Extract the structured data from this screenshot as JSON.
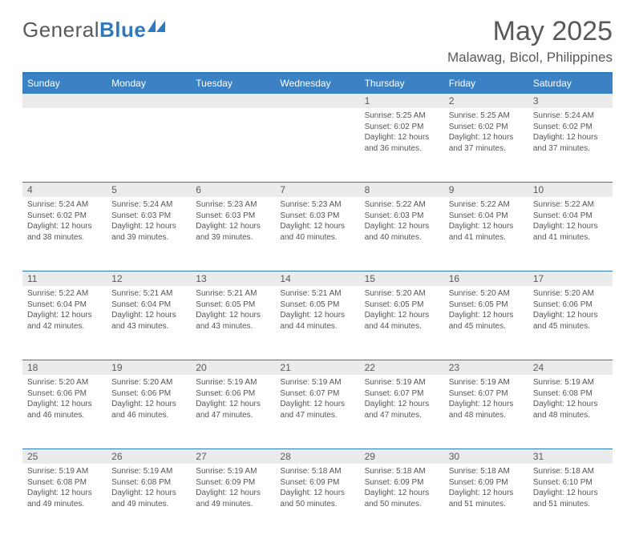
{
  "logo": {
    "text1": "General",
    "text2": "Blue"
  },
  "title": "May 2025",
  "location": "Malawag, Bicol, Philippines",
  "colors": {
    "header_bg": "#3b82c4",
    "header_border": "#2f7abf",
    "daynum_bg": "#ebebeb",
    "text": "#595959"
  },
  "days_of_week": [
    "Sunday",
    "Monday",
    "Tuesday",
    "Wednesday",
    "Thursday",
    "Friday",
    "Saturday"
  ],
  "weeks": [
    [
      null,
      null,
      null,
      null,
      {
        "n": "1",
        "sr": "5:25 AM",
        "ss": "6:02 PM",
        "dl": "12 hours and 36 minutes."
      },
      {
        "n": "2",
        "sr": "5:25 AM",
        "ss": "6:02 PM",
        "dl": "12 hours and 37 minutes."
      },
      {
        "n": "3",
        "sr": "5:24 AM",
        "ss": "6:02 PM",
        "dl": "12 hours and 37 minutes."
      }
    ],
    [
      {
        "n": "4",
        "sr": "5:24 AM",
        "ss": "6:02 PM",
        "dl": "12 hours and 38 minutes."
      },
      {
        "n": "5",
        "sr": "5:24 AM",
        "ss": "6:03 PM",
        "dl": "12 hours and 39 minutes."
      },
      {
        "n": "6",
        "sr": "5:23 AM",
        "ss": "6:03 PM",
        "dl": "12 hours and 39 minutes."
      },
      {
        "n": "7",
        "sr": "5:23 AM",
        "ss": "6:03 PM",
        "dl": "12 hours and 40 minutes."
      },
      {
        "n": "8",
        "sr": "5:22 AM",
        "ss": "6:03 PM",
        "dl": "12 hours and 40 minutes."
      },
      {
        "n": "9",
        "sr": "5:22 AM",
        "ss": "6:04 PM",
        "dl": "12 hours and 41 minutes."
      },
      {
        "n": "10",
        "sr": "5:22 AM",
        "ss": "6:04 PM",
        "dl": "12 hours and 41 minutes."
      }
    ],
    [
      {
        "n": "11",
        "sr": "5:22 AM",
        "ss": "6:04 PM",
        "dl": "12 hours and 42 minutes."
      },
      {
        "n": "12",
        "sr": "5:21 AM",
        "ss": "6:04 PM",
        "dl": "12 hours and 43 minutes."
      },
      {
        "n": "13",
        "sr": "5:21 AM",
        "ss": "6:05 PM",
        "dl": "12 hours and 43 minutes."
      },
      {
        "n": "14",
        "sr": "5:21 AM",
        "ss": "6:05 PM",
        "dl": "12 hours and 44 minutes."
      },
      {
        "n": "15",
        "sr": "5:20 AM",
        "ss": "6:05 PM",
        "dl": "12 hours and 44 minutes."
      },
      {
        "n": "16",
        "sr": "5:20 AM",
        "ss": "6:05 PM",
        "dl": "12 hours and 45 minutes."
      },
      {
        "n": "17",
        "sr": "5:20 AM",
        "ss": "6:06 PM",
        "dl": "12 hours and 45 minutes."
      }
    ],
    [
      {
        "n": "18",
        "sr": "5:20 AM",
        "ss": "6:06 PM",
        "dl": "12 hours and 46 minutes."
      },
      {
        "n": "19",
        "sr": "5:20 AM",
        "ss": "6:06 PM",
        "dl": "12 hours and 46 minutes."
      },
      {
        "n": "20",
        "sr": "5:19 AM",
        "ss": "6:06 PM",
        "dl": "12 hours and 47 minutes."
      },
      {
        "n": "21",
        "sr": "5:19 AM",
        "ss": "6:07 PM",
        "dl": "12 hours and 47 minutes."
      },
      {
        "n": "22",
        "sr": "5:19 AM",
        "ss": "6:07 PM",
        "dl": "12 hours and 47 minutes."
      },
      {
        "n": "23",
        "sr": "5:19 AM",
        "ss": "6:07 PM",
        "dl": "12 hours and 48 minutes."
      },
      {
        "n": "24",
        "sr": "5:19 AM",
        "ss": "6:08 PM",
        "dl": "12 hours and 48 minutes."
      }
    ],
    [
      {
        "n": "25",
        "sr": "5:19 AM",
        "ss": "6:08 PM",
        "dl": "12 hours and 49 minutes."
      },
      {
        "n": "26",
        "sr": "5:19 AM",
        "ss": "6:08 PM",
        "dl": "12 hours and 49 minutes."
      },
      {
        "n": "27",
        "sr": "5:19 AM",
        "ss": "6:09 PM",
        "dl": "12 hours and 49 minutes."
      },
      {
        "n": "28",
        "sr": "5:18 AM",
        "ss": "6:09 PM",
        "dl": "12 hours and 50 minutes."
      },
      {
        "n": "29",
        "sr": "5:18 AM",
        "ss": "6:09 PM",
        "dl": "12 hours and 50 minutes."
      },
      {
        "n": "30",
        "sr": "5:18 AM",
        "ss": "6:09 PM",
        "dl": "12 hours and 51 minutes."
      },
      {
        "n": "31",
        "sr": "5:18 AM",
        "ss": "6:10 PM",
        "dl": "12 hours and 51 minutes."
      }
    ]
  ],
  "labels": {
    "sunrise": "Sunrise: ",
    "sunset": "Sunset: ",
    "daylight": "Daylight: "
  }
}
